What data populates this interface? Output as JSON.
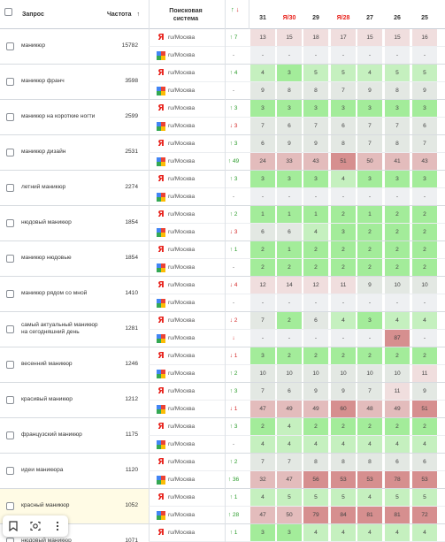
{
  "header": {
    "query": "Запрос",
    "frequency": "Частота",
    "sort_icon": "↑",
    "search_system_line1": "Поисковая",
    "search_system_line2": "система",
    "trend_up": "↑",
    "trend_down": "↓",
    "columns": [
      "31",
      "Я/30",
      "29",
      "Я/28",
      "27",
      "26",
      "25"
    ]
  },
  "colors": {
    "red_ya": "#e8221c",
    "trend_up": "#2e9d2e",
    "trend_down": "#d42a2a",
    "row_highlight": "#fffbe5",
    "pos_1_3": "#a3ec9a",
    "pos_4_5": "#c5f0bf",
    "pos_6_10": "#e3e8e3",
    "pos_11_20": "#f0dede",
    "pos_21_50": "#e3bcbc",
    "pos_51_100": "#d68f8f"
  },
  "rows": [
    {
      "query": "маникюр",
      "frequency": "15782",
      "engines": [
        {
          "engine": "yandex",
          "region": "ru/Москва",
          "trend": "↑ 7",
          "dir": "up",
          "values": [
            "13",
            "15",
            "18",
            "17",
            "15",
            "15",
            "16"
          ]
        },
        {
          "engine": "google",
          "region": "ru/Москва",
          "trend": "-",
          "dir": "neutral",
          "values": [
            "-",
            "-",
            "-",
            "-",
            "-",
            "-",
            "-"
          ]
        }
      ]
    },
    {
      "query": "маникюр франч",
      "frequency": "3598",
      "engines": [
        {
          "engine": "yandex",
          "region": "ru/Москва",
          "trend": "↑ 4",
          "dir": "up",
          "values": [
            "4",
            "3",
            "5",
            "5",
            "4",
            "5",
            "5"
          ]
        },
        {
          "engine": "google",
          "region": "ru/Москва",
          "trend": "-",
          "dir": "neutral",
          "values": [
            "9",
            "8",
            "8",
            "7",
            "9",
            "8",
            "9"
          ]
        }
      ]
    },
    {
      "query": "маникюр на короткие ногти",
      "frequency": "2599",
      "engines": [
        {
          "engine": "yandex",
          "region": "ru/Москва",
          "trend": "↑ 3",
          "dir": "up",
          "values": [
            "3",
            "3",
            "3",
            "3",
            "3",
            "3",
            "3"
          ]
        },
        {
          "engine": "google",
          "region": "ru/Москва",
          "trend": "↓ 3",
          "dir": "down",
          "values": [
            "7",
            "6",
            "7",
            "6",
            "7",
            "7",
            "6"
          ]
        }
      ]
    },
    {
      "query": "маникюр дизайн",
      "frequency": "2531",
      "engines": [
        {
          "engine": "yandex",
          "region": "ru/Москва",
          "trend": "↑ 3",
          "dir": "up",
          "values": [
            "6",
            "9",
            "9",
            "8",
            "7",
            "8",
            "7"
          ]
        },
        {
          "engine": "google",
          "region": "ru/Москва",
          "trend": "↑ 49",
          "dir": "up",
          "values": [
            "24",
            "33",
            "43",
            "51",
            "50",
            "41",
            "43"
          ]
        }
      ]
    },
    {
      "query": "летний маникюр",
      "frequency": "2274",
      "engines": [
        {
          "engine": "yandex",
          "region": "ru/Москва",
          "trend": "↑ 3",
          "dir": "up",
          "values": [
            "3",
            "3",
            "3",
            "4",
            "3",
            "3",
            "3"
          ]
        },
        {
          "engine": "google",
          "region": "ru/Москва",
          "trend": "-",
          "dir": "neutral",
          "values": [
            "-",
            "-",
            "-",
            "-",
            "-",
            "-",
            "-"
          ]
        }
      ]
    },
    {
      "query": "нюдовый маникюр",
      "frequency": "1854",
      "engines": [
        {
          "engine": "yandex",
          "region": "ru/Москва",
          "trend": "↑ 2",
          "dir": "up",
          "values": [
            "1",
            "1",
            "1",
            "2",
            "1",
            "2",
            "2"
          ]
        },
        {
          "engine": "google",
          "region": "ru/Москва",
          "trend": "↓ 3",
          "dir": "down",
          "values": [
            "6",
            "6",
            "4",
            "3",
            "2",
            "2",
            "2"
          ]
        }
      ]
    },
    {
      "query": "маникюр нюдовые",
      "frequency": "1854",
      "engines": [
        {
          "engine": "yandex",
          "region": "ru/Москва",
          "trend": "↑ 1",
          "dir": "up",
          "values": [
            "2",
            "1",
            "2",
            "2",
            "2",
            "2",
            "2"
          ]
        },
        {
          "engine": "google",
          "region": "ru/Москва",
          "trend": "-",
          "dir": "neutral",
          "values": [
            "2",
            "2",
            "2",
            "2",
            "2",
            "2",
            "2"
          ]
        }
      ]
    },
    {
      "query": "маникюр рядом со мной",
      "frequency": "1410",
      "engines": [
        {
          "engine": "yandex",
          "region": "ru/Москва",
          "trend": "↓ 4",
          "dir": "down",
          "values": [
            "12",
            "14",
            "12",
            "11",
            "9",
            "10",
            "10"
          ]
        },
        {
          "engine": "google",
          "region": "ru/Москва",
          "trend": "-",
          "dir": "neutral",
          "values": [
            "-",
            "-",
            "-",
            "-",
            "-",
            "-",
            "-"
          ]
        }
      ]
    },
    {
      "query": "самый актуальный маникюр на сегодняшний день",
      "frequency": "1281",
      "engines": [
        {
          "engine": "yandex",
          "region": "ru/Москва",
          "trend": "↓ 2",
          "dir": "down",
          "values": [
            "7",
            "2",
            "6",
            "4",
            "3",
            "4",
            "4"
          ]
        },
        {
          "engine": "google",
          "region": "ru/Москва",
          "trend": "↓",
          "dir": "down",
          "values": [
            "-",
            "-",
            "-",
            "-",
            "-",
            "87",
            "-"
          ]
        }
      ]
    },
    {
      "query": "весенний маникюр",
      "frequency": "1246",
      "engines": [
        {
          "engine": "yandex",
          "region": "ru/Москва",
          "trend": "↓ 1",
          "dir": "down",
          "values": [
            "3",
            "2",
            "2",
            "2",
            "2",
            "2",
            "2"
          ]
        },
        {
          "engine": "google",
          "region": "ru/Москва",
          "trend": "↑ 2",
          "dir": "up",
          "values": [
            "10",
            "10",
            "10",
            "10",
            "10",
            "10",
            "11"
          ]
        }
      ]
    },
    {
      "query": "красивый маникюр",
      "frequency": "1212",
      "engines": [
        {
          "engine": "yandex",
          "region": "ru/Москва",
          "trend": "↑ 3",
          "dir": "up",
          "values": [
            "7",
            "6",
            "9",
            "9",
            "7",
            "11",
            "9"
          ]
        },
        {
          "engine": "google",
          "region": "ru/Москва",
          "trend": "↓ 1",
          "dir": "down",
          "values": [
            "47",
            "49",
            "49",
            "60",
            "48",
            "49",
            "51"
          ]
        }
      ]
    },
    {
      "query": "французский маникюр",
      "frequency": "1175",
      "engines": [
        {
          "engine": "yandex",
          "region": "ru/Москва",
          "trend": "↑ 3",
          "dir": "up",
          "values": [
            "2",
            "4",
            "2",
            "2",
            "2",
            "2",
            "2"
          ]
        },
        {
          "engine": "google",
          "region": "ru/Москва",
          "trend": "-",
          "dir": "neutral",
          "values": [
            "4",
            "4",
            "4",
            "4",
            "4",
            "4",
            "4"
          ]
        }
      ]
    },
    {
      "query": "идеи маникюра",
      "frequency": "1120",
      "engines": [
        {
          "engine": "yandex",
          "region": "ru/Москва",
          "trend": "↑ 2",
          "dir": "up",
          "values": [
            "7",
            "7",
            "8",
            "8",
            "8",
            "6",
            "6"
          ]
        },
        {
          "engine": "google",
          "region": "ru/Москва",
          "trend": "↑ 36",
          "dir": "up",
          "values": [
            "32",
            "47",
            "56",
            "53",
            "53",
            "78",
            "53"
          ]
        }
      ]
    },
    {
      "query": "красный маникюр",
      "frequency": "1052",
      "highlight": true,
      "engines": [
        {
          "engine": "yandex",
          "region": "ru/Москва",
          "trend": "↑ 1",
          "dir": "up",
          "values": [
            "4",
            "5",
            "5",
            "5",
            "4",
            "5",
            "5"
          ]
        },
        {
          "engine": "google",
          "region": "ru/Москва",
          "trend": "↑ 28",
          "dir": "up",
          "values": [
            "47",
            "50",
            "79",
            "84",
            "81",
            "81",
            "72"
          ]
        }
      ]
    },
    {
      "query": "нюдовый маникюр",
      "frequency": "1071",
      "engines": [
        {
          "engine": "yandex",
          "region": "ru/Москва",
          "trend": "↑ 1",
          "dir": "up",
          "values": [
            "3",
            "3",
            "4",
            "4",
            "4",
            "4",
            "4"
          ]
        }
      ]
    }
  ],
  "toolbar": {
    "bookmark_icon": "bookmark-icon",
    "lens_icon": "lens-search-icon",
    "more_icon": "more-vertical-icon"
  }
}
